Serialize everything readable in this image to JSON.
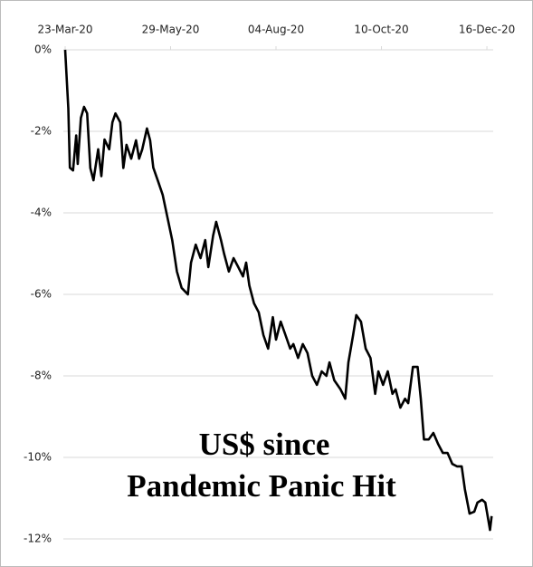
{
  "chart_data": {
    "type": "line",
    "title": [
      "US$ since",
      "Pandemic Panic Hit"
    ],
    "color": "#000000",
    "grid": true,
    "x": [
      "2020-03-23",
      "2020-03-25",
      "2020-03-26",
      "2020-03-28",
      "2020-03-30",
      "2020-03-31",
      "2020-04-02",
      "2020-04-04",
      "2020-04-06",
      "2020-04-08",
      "2020-04-10",
      "2020-04-13",
      "2020-04-15",
      "2020-04-17",
      "2020-04-20",
      "2020-04-22",
      "2020-04-24",
      "2020-04-27",
      "2020-04-29",
      "2020-05-01",
      "2020-05-04",
      "2020-05-07",
      "2020-05-09",
      "2020-05-11",
      "2020-05-14",
      "2020-05-16",
      "2020-05-18",
      "2020-05-21",
      "2020-05-24",
      "2020-05-27",
      "2020-05-30",
      "2020-06-02",
      "2020-06-05",
      "2020-06-09",
      "2020-06-11",
      "2020-06-14",
      "2020-06-17",
      "2020-06-20",
      "2020-06-22",
      "2020-06-25",
      "2020-06-27",
      "2020-06-30",
      "2020-07-02",
      "2020-07-05",
      "2020-07-08",
      "2020-07-11",
      "2020-07-14",
      "2020-07-16",
      "2020-07-18",
      "2020-07-21",
      "2020-07-24",
      "2020-07-27",
      "2020-07-30",
      "2020-08-02",
      "2020-08-04",
      "2020-08-07",
      "2020-08-10",
      "2020-08-13",
      "2020-08-15",
      "2020-08-18",
      "2020-08-21",
      "2020-08-24",
      "2020-08-27",
      "2020-08-30",
      "2020-09-02",
      "2020-09-05",
      "2020-09-07",
      "2020-09-10",
      "2020-09-14",
      "2020-09-17",
      "2020-09-19",
      "2020-09-22",
      "2020-09-24",
      "2020-09-27",
      "2020-09-30",
      "2020-10-03",
      "2020-10-06",
      "2020-10-08",
      "2020-10-11",
      "2020-10-14",
      "2020-10-17",
      "2020-10-19",
      "2020-10-22",
      "2020-10-25",
      "2020-10-27",
      "2020-10-30",
      "2020-11-02",
      "2020-11-04",
      "2020-11-06",
      "2020-11-09",
      "2020-11-12",
      "2020-11-15",
      "2020-11-18",
      "2020-11-21",
      "2020-11-24",
      "2020-11-27",
      "2020-11-30",
      "2020-12-02",
      "2020-12-05",
      "2020-12-08",
      "2020-12-10",
      "2020-12-13",
      "2020-12-15",
      "2020-12-17",
      "2020-12-18",
      "2020-12-19"
    ],
    "values": [
      0,
      -1.44,
      -2.89,
      -2.96,
      -2.1,
      -2.8,
      -1.67,
      -1.4,
      -1.56,
      -2.9,
      -3.2,
      -2.44,
      -3.1,
      -2.2,
      -2.44,
      -1.78,
      -1.56,
      -1.78,
      -2.9,
      -2.33,
      -2.67,
      -2.22,
      -2.67,
      -2.44,
      -1.93,
      -2.22,
      -2.89,
      -3.22,
      -3.56,
      -4.11,
      -4.67,
      -5.44,
      -5.84,
      -6.0,
      -5.22,
      -4.78,
      -5.11,
      -4.67,
      -5.33,
      -4.56,
      -4.22,
      -4.67,
      -5.0,
      -5.44,
      -5.11,
      -5.33,
      -5.56,
      -5.22,
      -5.78,
      -6.22,
      -6.44,
      -7.0,
      -7.33,
      -6.56,
      -7.11,
      -6.67,
      -7.0,
      -7.33,
      -7.22,
      -7.56,
      -7.22,
      -7.44,
      -8.0,
      -8.22,
      -7.89,
      -8.0,
      -7.67,
      -8.11,
      -8.33,
      -8.56,
      -7.67,
      -7.0,
      -6.51,
      -6.67,
      -7.33,
      -7.56,
      -8.44,
      -7.89,
      -8.22,
      -7.89,
      -8.44,
      -8.33,
      -8.78,
      -8.56,
      -8.67,
      -7.78,
      -7.78,
      -8.56,
      -9.56,
      -9.56,
      -9.4,
      -9.67,
      -9.89,
      -9.89,
      -10.16,
      -10.22,
      -10.22,
      -10.78,
      -11.38,
      -11.33,
      -11.11,
      -11.04,
      -11.11,
      -11.56,
      -11.78,
      -11.44
    ],
    "xlim": [
      "2020-03-23",
      "2020-12-20"
    ],
    "xticks": [
      {
        "value": "2020-03-23",
        "label": "23-Mar-20"
      },
      {
        "value": "2020-05-29",
        "label": "29-May-20"
      },
      {
        "value": "2020-08-04",
        "label": "04-Aug-20"
      },
      {
        "value": "2020-10-10",
        "label": "10-Oct-20"
      },
      {
        "value": "2020-12-16",
        "label": "16-Dec-20"
      }
    ],
    "ylim": [
      -12,
      0
    ],
    "yticks": [
      {
        "value": 0,
        "label": "0%"
      },
      {
        "value": -2,
        "label": "-2%"
      },
      {
        "value": -4,
        "label": "-4%"
      },
      {
        "value": -6,
        "label": "-6%"
      },
      {
        "value": -8,
        "label": "-8%"
      },
      {
        "value": -10,
        "label": "-10%"
      },
      {
        "value": -12,
        "label": "-12%"
      }
    ]
  }
}
